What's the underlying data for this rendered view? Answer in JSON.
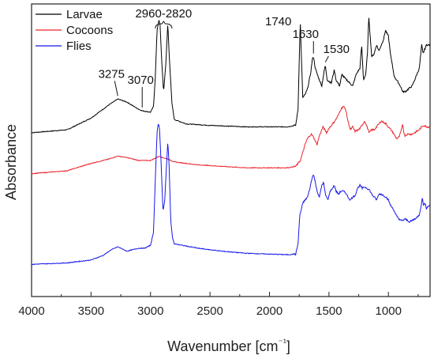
{
  "chart_data": {
    "type": "line",
    "xlabel": "Wavenumber [cm⁻¹]",
    "ylabel": "Absorbance",
    "xlim": [
      4000,
      650
    ],
    "x_reversed": true,
    "x_ticks": [
      4000,
      3500,
      3000,
      2500,
      2000,
      1500,
      1000
    ],
    "y_ticks_shown": false,
    "ylim": [
      0,
      1
    ],
    "grid": false,
    "legend_position": "top-left",
    "series": [
      {
        "name": "Larvae",
        "color": "#000000",
        "points": [
          [
            4000,
            0.56
          ],
          [
            3700,
            0.57
          ],
          [
            3500,
            0.61
          ],
          [
            3350,
            0.655
          ],
          [
            3275,
            0.675
          ],
          [
            3200,
            0.665
          ],
          [
            3100,
            0.64
          ],
          [
            3070,
            0.635
          ],
          [
            3000,
            0.63
          ],
          [
            2975,
            0.65
          ],
          [
            2960,
            0.75
          ],
          [
            2945,
            0.91
          ],
          [
            2930,
            0.945
          ],
          [
            2920,
            0.93
          ],
          [
            2905,
            0.8
          ],
          [
            2890,
            0.7
          ],
          [
            2870,
            0.8
          ],
          [
            2855,
            0.935
          ],
          [
            2845,
            0.84
          ],
          [
            2820,
            0.66
          ],
          [
            2800,
            0.605
          ],
          [
            2700,
            0.59
          ],
          [
            2500,
            0.585
          ],
          [
            2200,
            0.58
          ],
          [
            2000,
            0.58
          ],
          [
            1850,
            0.58
          ],
          [
            1780,
            0.585
          ],
          [
            1760,
            0.64
          ],
          [
            1745,
            0.89
          ],
          [
            1740,
            0.93
          ],
          [
            1735,
            0.86
          ],
          [
            1720,
            0.68
          ],
          [
            1700,
            0.69
          ],
          [
            1680,
            0.71
          ],
          [
            1655,
            0.76
          ],
          [
            1640,
            0.81
          ],
          [
            1630,
            0.82
          ],
          [
            1615,
            0.78
          ],
          [
            1590,
            0.75
          ],
          [
            1560,
            0.72
          ],
          [
            1540,
            0.77
          ],
          [
            1530,
            0.79
          ],
          [
            1515,
            0.74
          ],
          [
            1480,
            0.73
          ],
          [
            1455,
            0.775
          ],
          [
            1440,
            0.74
          ],
          [
            1410,
            0.72
          ],
          [
            1390,
            0.76
          ],
          [
            1375,
            0.75
          ],
          [
            1350,
            0.74
          ],
          [
            1300,
            0.72
          ],
          [
            1270,
            0.76
          ],
          [
            1240,
            0.78
          ],
          [
            1225,
            0.86
          ],
          [
            1210,
            0.74
          ],
          [
            1190,
            0.76
          ],
          [
            1175,
            0.84
          ],
          [
            1165,
            0.96
          ],
          [
            1155,
            0.9
          ],
          [
            1140,
            0.82
          ],
          [
            1120,
            0.83
          ],
          [
            1100,
            0.86
          ],
          [
            1080,
            0.84
          ],
          [
            1060,
            0.86
          ],
          [
            1040,
            0.88
          ],
          [
            1025,
            0.91
          ],
          [
            1000,
            0.89
          ],
          [
            980,
            0.82
          ],
          [
            950,
            0.75
          ],
          [
            930,
            0.74
          ],
          [
            900,
            0.72
          ],
          [
            880,
            0.7
          ],
          [
            860,
            0.7
          ],
          [
            830,
            0.71
          ],
          [
            800,
            0.72
          ],
          [
            780,
            0.74
          ],
          [
            760,
            0.76
          ],
          [
            740,
            0.78
          ],
          [
            720,
            0.86
          ],
          [
            710,
            0.83
          ],
          [
            700,
            0.84
          ],
          [
            680,
            0.86
          ],
          [
            660,
            0.86
          ]
        ]
      },
      {
        "name": "Cocoons",
        "color": "#e8252d",
        "points": [
          [
            4000,
            0.42
          ],
          [
            3700,
            0.43
          ],
          [
            3500,
            0.455
          ],
          [
            3350,
            0.47
          ],
          [
            3275,
            0.48
          ],
          [
            3200,
            0.475
          ],
          [
            3100,
            0.465
          ],
          [
            3000,
            0.465
          ],
          [
            2950,
            0.475
          ],
          [
            2925,
            0.48
          ],
          [
            2900,
            0.475
          ],
          [
            2855,
            0.47
          ],
          [
            2800,
            0.46
          ],
          [
            2600,
            0.45
          ],
          [
            2400,
            0.445
          ],
          [
            2200,
            0.44
          ],
          [
            2000,
            0.44
          ],
          [
            1850,
            0.44
          ],
          [
            1780,
            0.445
          ],
          [
            1740,
            0.465
          ],
          [
            1700,
            0.52
          ],
          [
            1680,
            0.54
          ],
          [
            1650,
            0.555
          ],
          [
            1630,
            0.545
          ],
          [
            1600,
            0.52
          ],
          [
            1580,
            0.55
          ],
          [
            1550,
            0.58
          ],
          [
            1520,
            0.56
          ],
          [
            1500,
            0.575
          ],
          [
            1450,
            0.6
          ],
          [
            1420,
            0.62
          ],
          [
            1400,
            0.64
          ],
          [
            1380,
            0.65
          ],
          [
            1360,
            0.64
          ],
          [
            1340,
            0.6
          ],
          [
            1320,
            0.57
          ],
          [
            1300,
            0.58
          ],
          [
            1280,
            0.565
          ],
          [
            1250,
            0.57
          ],
          [
            1230,
            0.58
          ],
          [
            1200,
            0.6
          ],
          [
            1180,
            0.58
          ],
          [
            1160,
            0.56
          ],
          [
            1140,
            0.57
          ],
          [
            1120,
            0.57
          ],
          [
            1100,
            0.58
          ],
          [
            1080,
            0.59
          ],
          [
            1060,
            0.6
          ],
          [
            1040,
            0.595
          ],
          [
            1020,
            0.59
          ],
          [
            1000,
            0.58
          ],
          [
            980,
            0.57
          ],
          [
            960,
            0.56
          ],
          [
            940,
            0.545
          ],
          [
            930,
            0.54
          ],
          [
            910,
            0.545
          ],
          [
            890,
            0.57
          ],
          [
            880,
            0.59
          ],
          [
            870,
            0.56
          ],
          [
            860,
            0.55
          ],
          [
            840,
            0.555
          ],
          [
            800,
            0.555
          ],
          [
            780,
            0.56
          ],
          [
            760,
            0.565
          ],
          [
            740,
            0.57
          ],
          [
            720,
            0.58
          ],
          [
            700,
            0.585
          ],
          [
            680,
            0.58
          ],
          [
            660,
            0.58
          ]
        ]
      },
      {
        "name": "Flies",
        "color": "#1818e8",
        "points": [
          [
            4000,
            0.11
          ],
          [
            3700,
            0.115
          ],
          [
            3500,
            0.125
          ],
          [
            3400,
            0.14
          ],
          [
            3330,
            0.16
          ],
          [
            3300,
            0.165
          ],
          [
            3275,
            0.17
          ],
          [
            3250,
            0.165
          ],
          [
            3200,
            0.155
          ],
          [
            3150,
            0.16
          ],
          [
            3100,
            0.165
          ],
          [
            3050,
            0.165
          ],
          [
            3000,
            0.175
          ],
          [
            2975,
            0.22
          ],
          [
            2960,
            0.4
          ],
          [
            2945,
            0.56
          ],
          [
            2935,
            0.59
          ],
          [
            2925,
            0.58
          ],
          [
            2910,
            0.45
          ],
          [
            2895,
            0.29
          ],
          [
            2880,
            0.33
          ],
          [
            2865,
            0.45
          ],
          [
            2855,
            0.53
          ],
          [
            2845,
            0.46
          ],
          [
            2830,
            0.26
          ],
          [
            2815,
            0.2
          ],
          [
            2800,
            0.18
          ],
          [
            2600,
            0.165
          ],
          [
            2400,
            0.155
          ],
          [
            2200,
            0.148
          ],
          [
            2000,
            0.145
          ],
          [
            1850,
            0.143
          ],
          [
            1780,
            0.145
          ],
          [
            1760,
            0.18
          ],
          [
            1745,
            0.28
          ],
          [
            1730,
            0.3
          ],
          [
            1720,
            0.32
          ],
          [
            1700,
            0.33
          ],
          [
            1680,
            0.34
          ],
          [
            1660,
            0.37
          ],
          [
            1645,
            0.4
          ],
          [
            1630,
            0.42
          ],
          [
            1615,
            0.39
          ],
          [
            1600,
            0.36
          ],
          [
            1580,
            0.34
          ],
          [
            1560,
            0.38
          ],
          [
            1545,
            0.39
          ],
          [
            1530,
            0.35
          ],
          [
            1510,
            0.33
          ],
          [
            1490,
            0.36
          ],
          [
            1470,
            0.37
          ],
          [
            1455,
            0.38
          ],
          [
            1440,
            0.36
          ],
          [
            1420,
            0.35
          ],
          [
            1400,
            0.36
          ],
          [
            1380,
            0.36
          ],
          [
            1360,
            0.355
          ],
          [
            1340,
            0.34
          ],
          [
            1320,
            0.33
          ],
          [
            1300,
            0.34
          ],
          [
            1280,
            0.345
          ],
          [
            1260,
            0.37
          ],
          [
            1240,
            0.38
          ],
          [
            1220,
            0.37
          ],
          [
            1200,
            0.375
          ],
          [
            1180,
            0.37
          ],
          [
            1160,
            0.365
          ],
          [
            1140,
            0.35
          ],
          [
            1120,
            0.34
          ],
          [
            1100,
            0.33
          ],
          [
            1080,
            0.35
          ],
          [
            1060,
            0.35
          ],
          [
            1040,
            0.345
          ],
          [
            1020,
            0.34
          ],
          [
            1000,
            0.33
          ],
          [
            980,
            0.31
          ],
          [
            960,
            0.3
          ],
          [
            940,
            0.28
          ],
          [
            920,
            0.27
          ],
          [
            900,
            0.26
          ],
          [
            880,
            0.26
          ],
          [
            860,
            0.265
          ],
          [
            840,
            0.26
          ],
          [
            820,
            0.255
          ],
          [
            800,
            0.26
          ],
          [
            780,
            0.265
          ],
          [
            760,
            0.27
          ],
          [
            740,
            0.28
          ],
          [
            720,
            0.32
          ],
          [
            715,
            0.34
          ],
          [
            705,
            0.31
          ],
          [
            690,
            0.32
          ],
          [
            680,
            0.3
          ],
          [
            665,
            0.31
          ]
        ]
      }
    ],
    "annotations": [
      {
        "text": "3275",
        "x": 3275,
        "series": "Larvae"
      },
      {
        "text": "3070",
        "x": 3070,
        "series": "Larvae"
      },
      {
        "text": "2960-2820",
        "x_range": [
          2960,
          2820
        ],
        "series": "Larvae"
      },
      {
        "text": "1740",
        "x": 1740,
        "series": "Larvae"
      },
      {
        "text": "1630",
        "x": 1630,
        "series": "Larvae"
      },
      {
        "text": "1530",
        "x": 1530,
        "series": "Larvae"
      }
    ]
  }
}
